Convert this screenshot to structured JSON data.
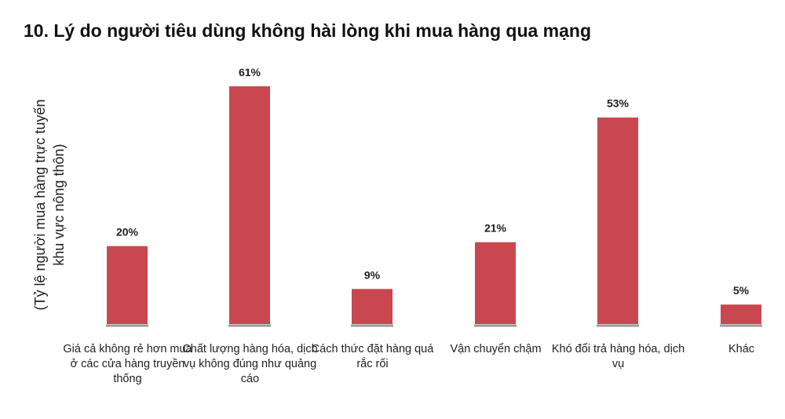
{
  "chart_data": {
    "type": "bar",
    "title": "10. Lý do người tiêu dùng không hài lòng khi mua hàng qua mạng",
    "ylabel_lines": [
      "(Tỷ lệ người mua hàng trực tuyến",
      "khu vực nông thôn)"
    ],
    "categories": [
      "Giá cả không rẻ hơn mua ở các cửa hàng truyền thống",
      "Chất lượng hàng hóa, dịch vụ không đúng như quảng cáo",
      "Cách thức đặt hàng quá rắc rối",
      "Vận chuyển chậm",
      "Khó đổi trả hàng hóa, dịch vụ",
      "Khác"
    ],
    "values": [
      20,
      61,
      9,
      21,
      53,
      5
    ],
    "value_labels": [
      "20%",
      "61%",
      "9%",
      "21%",
      "53%",
      "5%"
    ],
    "unit": "%",
    "ylim": [
      0,
      61
    ],
    "grid": false,
    "bar_color": "#c9474f",
    "baseline_color": "#9a9a9a"
  }
}
